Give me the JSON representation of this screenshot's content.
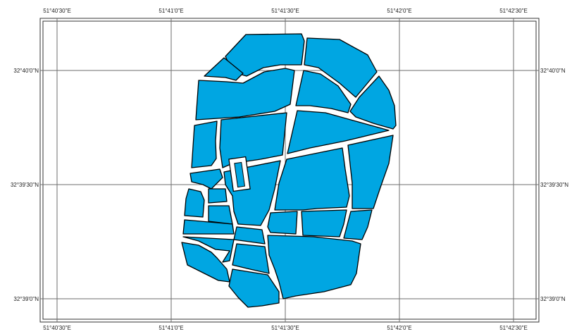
{
  "map": {
    "fill_color": "#00a6e2",
    "outline_color": "#000000",
    "grid_color": "#6e6e6e",
    "lon_ticks": [
      "51°40'30\"E",
      "51°41'0\"E",
      "51°41'30\"E",
      "51°42'0\"E",
      "51°42'30\"E"
    ],
    "lat_ticks": [
      "32°40'0\"N",
      "32°39'30\"N",
      "32°39'0\"N"
    ]
  }
}
